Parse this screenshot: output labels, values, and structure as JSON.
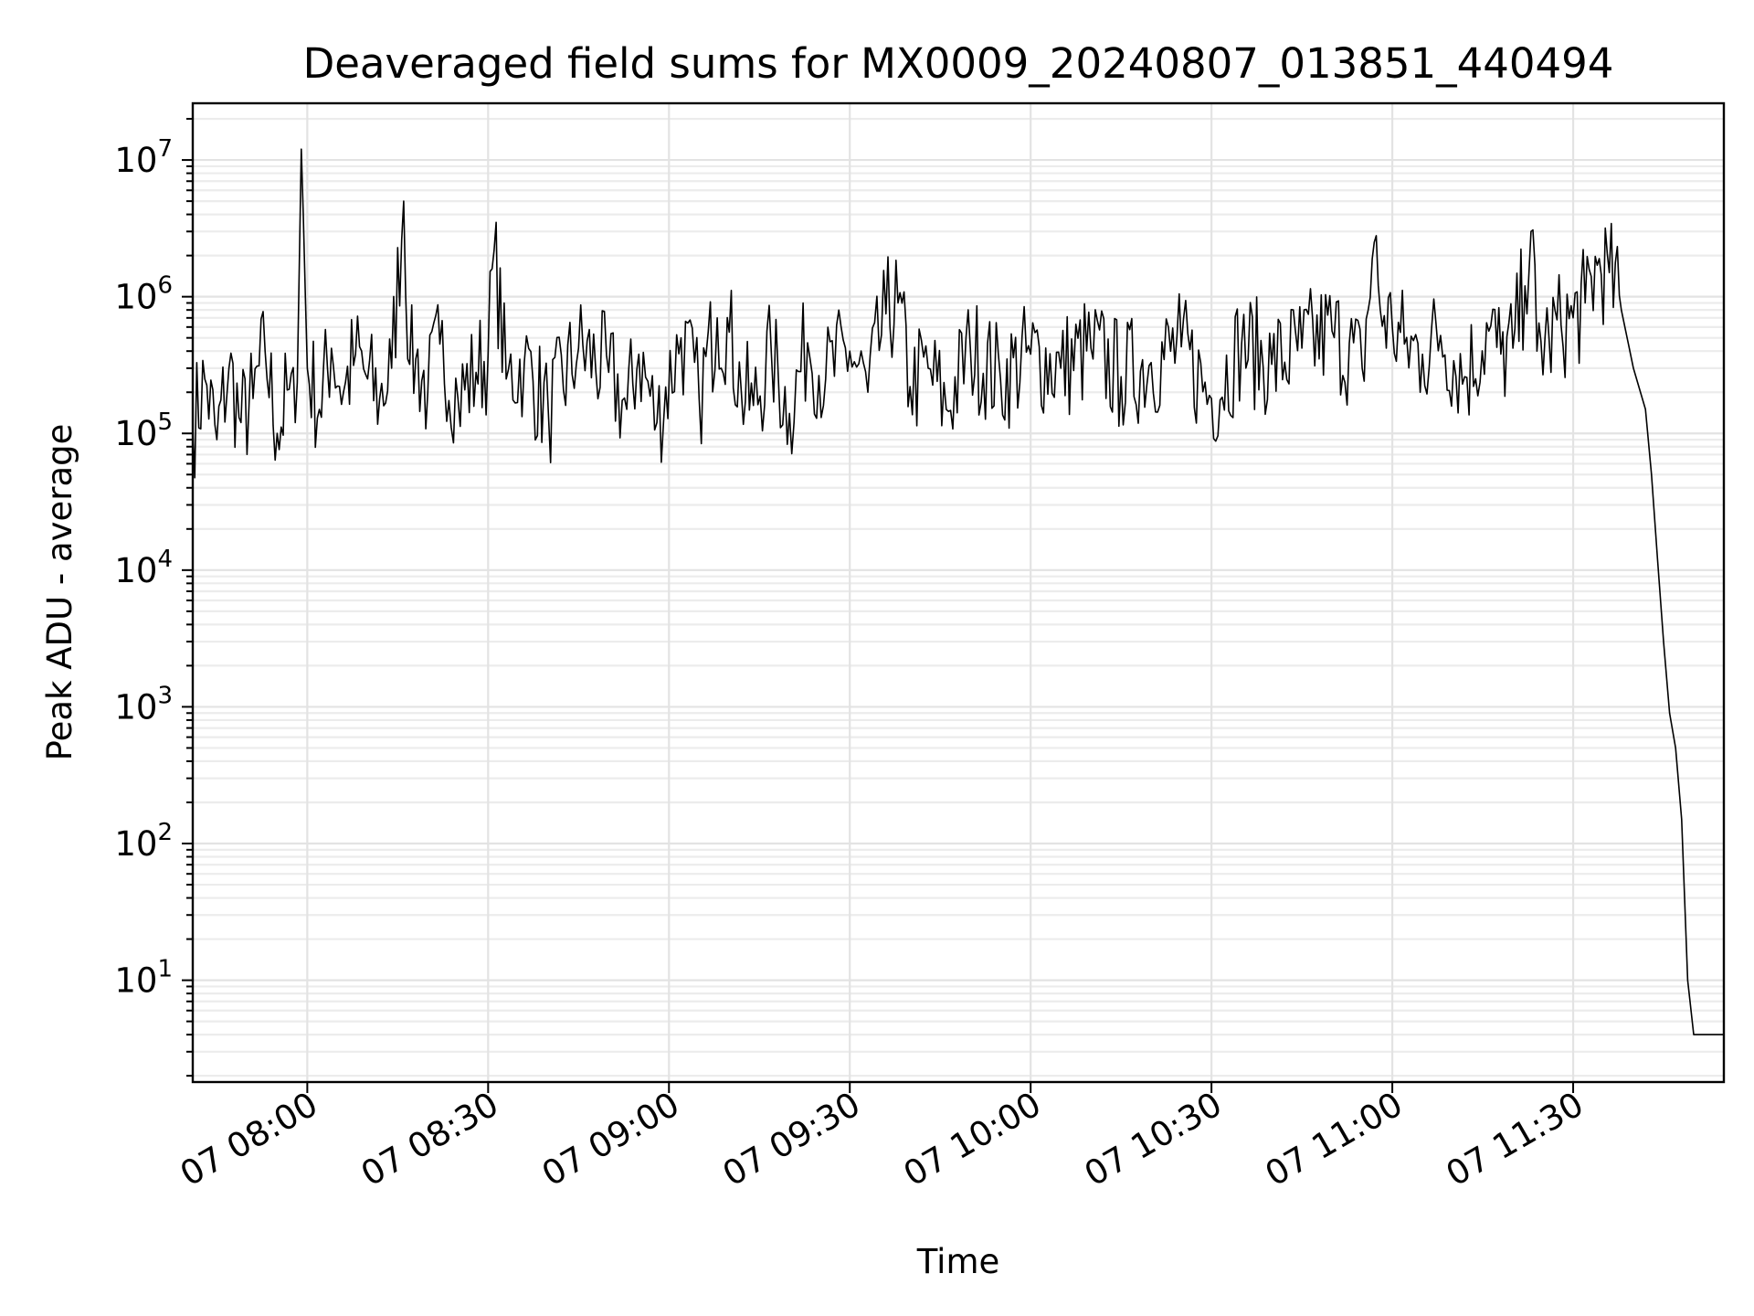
{
  "chart_data": {
    "type": "line",
    "title": "Deaveraged field sums for MX0009_20240807_013851_440494",
    "xlabel": "Time",
    "ylabel": "Peak ADU - average",
    "yscale": "log",
    "grid": true,
    "xlim": [
      "07 07:41",
      "07 11:55"
    ],
    "ylim": [
      1.8,
      26000000
    ],
    "x_ticks": [
      "07 08:00",
      "07 08:30",
      "07 09:00",
      "07 09:30",
      "07 10:00",
      "07 10:30",
      "07 11:00",
      "07 11:30"
    ],
    "y_ticks": [
      {
        "base": "10",
        "exp": "1",
        "value": 10
      },
      {
        "base": "10",
        "exp": "2",
        "value": 100
      },
      {
        "base": "10",
        "exp": "3",
        "value": 1000
      },
      {
        "base": "10",
        "exp": "4",
        "value": 10000
      },
      {
        "base": "10",
        "exp": "5",
        "value": 100000
      },
      {
        "base": "10",
        "exp": "6",
        "value": 1000000
      },
      {
        "base": "10",
        "exp": "7",
        "value": 10000000
      }
    ],
    "series": [
      {
        "color": "#000000",
        "x": [
          "07 07:41",
          "07 07:43",
          "07 07:45",
          "07 07:47",
          "07 07:49",
          "07 07:51",
          "07 07:53",
          "07 07:55",
          "07 07:57",
          "07 07:58",
          "07 07:59",
          "07 08:00",
          "07 08:02",
          "07 08:04",
          "07 08:06",
          "07 08:08",
          "07 08:10",
          "07 08:12",
          "07 08:14",
          "07 08:16",
          "07 08:17",
          "07 08:18",
          "07 08:20",
          "07 08:22",
          "07 08:25",
          "07 08:28",
          "07 08:30",
          "07 08:31",
          "07 08:33",
          "07 08:36",
          "07 08:40",
          "07 08:45",
          "07 08:50",
          "07 08:53",
          "07 08:55",
          "07 08:58",
          "07 09:02",
          "07 09:05",
          "07 09:08",
          "07 09:10",
          "07 09:12",
          "07 09:14",
          "07 09:17",
          "07 09:20",
          "07 09:23",
          "07 09:26",
          "07 09:30",
          "07 09:33",
          "07 09:36",
          "07 09:38",
          "07 09:40",
          "07 09:43",
          "07 09:46",
          "07 09:50",
          "07 09:55",
          "07 10:00",
          "07 10:05",
          "07 10:10",
          "07 10:15",
          "07 10:20",
          "07 10:25",
          "07 10:30",
          "07 10:35",
          "07 10:40",
          "07 10:45",
          "07 10:50",
          "07 10:55",
          "07 10:57",
          "07 10:58",
          "07 11:00",
          "07 11:02",
          "07 11:05",
          "07 11:08",
          "07 11:12",
          "07 11:16",
          "07 11:18",
          "07 11:20",
          "07 11:22",
          "07 11:23",
          "07 11:24",
          "07 11:26",
          "07 11:28",
          "07 11:30",
          "07 11:32",
          "07 11:34",
          "07 11:36",
          "07 11:38",
          "07 11:40",
          "07 11:42",
          "07 11:43",
          "07 11:44",
          "07 11:45",
          "07 11:46",
          "07 11:47",
          "07 11:48",
          "07 11:49",
          "07 11:50",
          "07 11:51",
          "07 11:52",
          "07 11:53",
          "07 11:55"
        ],
        "y": [
          110000,
          250000,
          90000,
          300000,
          120000,
          180000,
          400000,
          100000,
          210000,
          120000,
          12000000,
          300000,
          150000,
          420000,
          200000,
          380000,
          250000,
          180000,
          300000,
          5000000,
          320000,
          350000,
          200000,
          450000,
          180000,
          280000,
          380000,
          2200000,
          250000,
          330000,
          140000,
          420000,
          280000,
          150000,
          380000,
          120000,
          500000,
          180000,
          700000,
          550000,
          200000,
          160000,
          380000,
          140000,
          460000,
          250000,
          400000,
          200000,
          750000,
          900000,
          220000,
          300000,
          150000,
          420000,
          250000,
          380000,
          300000,
          420000,
          260000,
          330000,
          430000,
          180000,
          450000,
          320000,
          420000,
          560000,
          300000,
          2500000,
          800000,
          600000,
          450000,
          380000,
          520000,
          260000,
          560000,
          380000,
          420000,
          1200000,
          3000000,
          400000,
          500000,
          620000,
          700000,
          900000,
          1700000,
          1500000,
          800000,
          300000,
          150000,
          50000,
          12000,
          3000,
          900,
          500,
          150,
          10,
          4,
          4,
          4,
          4,
          4
        ]
      }
    ]
  }
}
